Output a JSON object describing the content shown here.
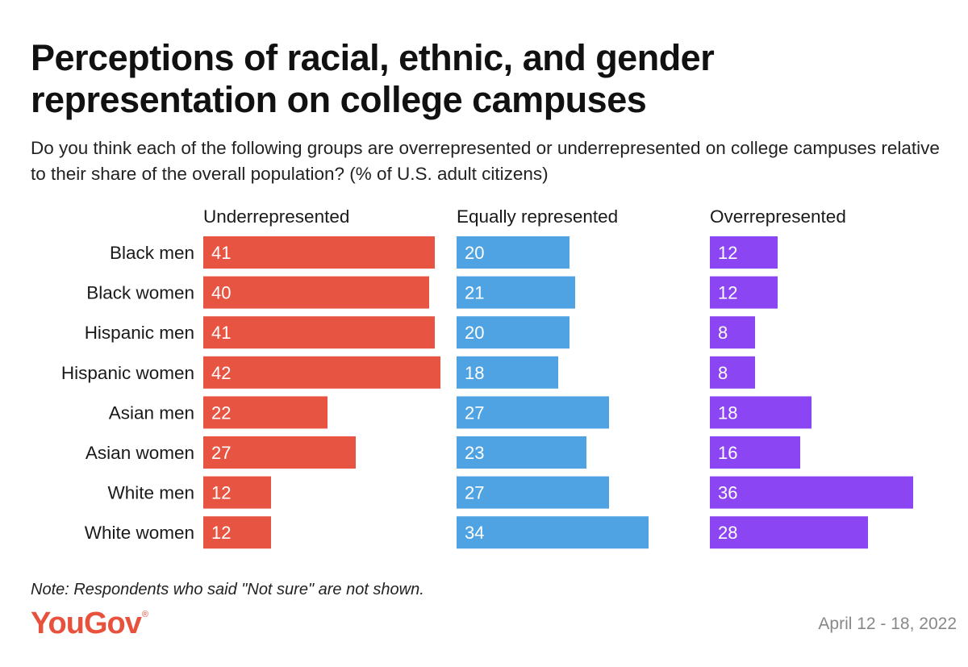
{
  "title": "Perceptions of racial, ethnic, and gender representation on college campuses",
  "subtitle": "Do you think each of the following groups are overrepresented or underrepresented on college campuses relative to their share of the overall population? (% of U.S. adult citizens)",
  "note": "Note: Respondents who said \"Not sure\" are not shown.",
  "brand": {
    "name": "YouGov",
    "mark": "®",
    "color": "#e8513c"
  },
  "date": "April 12 - 18, 2022",
  "chart_data": {
    "type": "bar",
    "orientation": "horizontal",
    "layout": "small-multiples",
    "categories": [
      "Black men",
      "Black women",
      "Hispanic men",
      "Hispanic women",
      "Asian men",
      "Asian women",
      "White men",
      "White women"
    ],
    "series": [
      {
        "name": "Underrepresented",
        "color": "#e85442",
        "values": [
          41,
          40,
          41,
          42,
          22,
          27,
          12,
          12
        ]
      },
      {
        "name": "Equally represented",
        "color": "#4fa3e3",
        "values": [
          20,
          21,
          20,
          18,
          27,
          23,
          27,
          34
        ]
      },
      {
        "name": "Overrepresented",
        "color": "#8c45f2",
        "values": [
          12,
          12,
          8,
          8,
          18,
          16,
          36,
          28
        ]
      }
    ]
  }
}
